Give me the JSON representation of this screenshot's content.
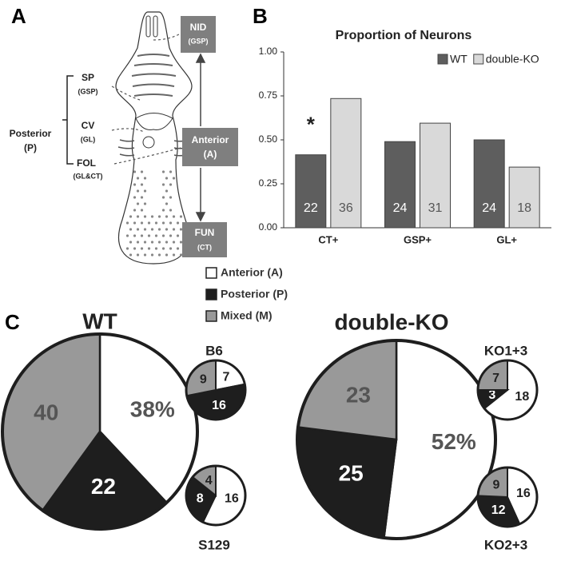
{
  "panel_labels": [
    "A",
    "B",
    "C"
  ],
  "diagram": {
    "boxes": [
      {
        "label": "NID",
        "sub": "(GSP)"
      },
      {
        "label": "Anterior",
        "sub": "(A)"
      },
      {
        "label": "FUN",
        "sub": "(CT)"
      }
    ],
    "regions": [
      {
        "label": "SP",
        "sub": "(GSP)"
      },
      {
        "label": "CV",
        "sub": "(GL)"
      },
      {
        "label": "FOL",
        "sub": "(GL&CT)"
      }
    ],
    "group": {
      "label": "Posterior",
      "sub": "(P)"
    }
  },
  "chart_data": [
    {
      "type": "bar",
      "title": "Proportion of Neurons",
      "categories": [
        "CT+",
        "GSP+",
        "GL+"
      ],
      "series": [
        {
          "name": "WT",
          "color": "#5e5e5e",
          "values": [
            0.415,
            0.49,
            0.5
          ],
          "counts": [
            22,
            24,
            24
          ]
        },
        {
          "name": "double-KO",
          "color": "#d9d9d9",
          "values": [
            0.735,
            0.595,
            0.345
          ],
          "counts": [
            36,
            31,
            18
          ]
        }
      ],
      "annotation": "*",
      "ylim": [
        0,
        1
      ],
      "yticks": [
        {
          "value": 0,
          "label": "0.00"
        },
        {
          "value": 0.25,
          "label": "0.25"
        },
        {
          "value": 0.5,
          "label": "0.50"
        },
        {
          "value": 0.75,
          "label": "0.75"
        },
        {
          "value": 1,
          "label": "1.00"
        }
      ],
      "grid": false,
      "legend": "top-right"
    },
    {
      "type": "pie",
      "title": "WT",
      "categories": [
        "Anterior (A)",
        "Posterior (P)",
        "Mixed (M)"
      ],
      "colors": [
        "#ffffff",
        "#1e1e1e",
        "#999999"
      ],
      "values": [
        38,
        22,
        40
      ],
      "value_labels": [
        "38%",
        "22",
        "40"
      ],
      "legend": true
    },
    {
      "type": "pie",
      "title": "B6",
      "categories": [
        "Anterior (A)",
        "Posterior (P)",
        "Mixed (M)"
      ],
      "colors": [
        "#ffffff",
        "#1e1e1e",
        "#999999"
      ],
      "values": [
        7,
        16,
        9
      ]
    },
    {
      "type": "pie",
      "title": "S129",
      "categories": [
        "Anterior (A)",
        "Posterior (P)",
        "Mixed (M)"
      ],
      "colors": [
        "#ffffff",
        "#1e1e1e",
        "#999999"
      ],
      "values": [
        16,
        8,
        4
      ]
    },
    {
      "type": "pie",
      "title": "double-KO",
      "categories": [
        "Anterior (A)",
        "Posterior (P)",
        "Mixed (M)"
      ],
      "colors": [
        "#ffffff",
        "#1e1e1e",
        "#999999"
      ],
      "values": [
        52,
        25,
        23
      ],
      "value_labels": [
        "52%",
        "25",
        "23"
      ]
    },
    {
      "type": "pie",
      "title": "KO1+3",
      "categories": [
        "Anterior (A)",
        "Posterior (P)",
        "Mixed (M)"
      ],
      "colors": [
        "#ffffff",
        "#1e1e1e",
        "#999999"
      ],
      "values": [
        18,
        3,
        7
      ]
    },
    {
      "type": "pie",
      "title": "KO2+3",
      "categories": [
        "Anterior (A)",
        "Posterior (P)",
        "Mixed (M)"
      ],
      "colors": [
        "#ffffff",
        "#1e1e1e",
        "#999999"
      ],
      "values": [
        16,
        12,
        9
      ]
    }
  ]
}
